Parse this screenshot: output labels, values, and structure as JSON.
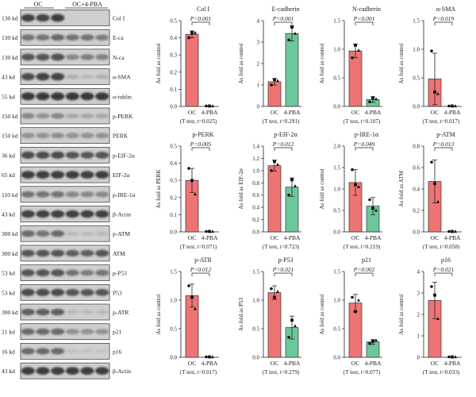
{
  "blot": {
    "group_labels": [
      "OC",
      "OC+4-PBA"
    ],
    "rows": [
      {
        "kd": "130 kd",
        "name": "Col I",
        "oc": [
          0.8,
          0.78,
          0.82
        ],
        "pba": [
          0.1,
          0.08,
          0.08
        ]
      },
      {
        "kd": "130 kd",
        "name": "E-ca",
        "oc": [
          0.55,
          0.55,
          0.6
        ],
        "pba": [
          0.55,
          0.55,
          0.5
        ]
      },
      {
        "kd": "130 kd",
        "name": "N-ca",
        "oc": [
          0.7,
          0.7,
          0.72
        ],
        "pba": [
          0.45,
          0.5,
          0.48
        ]
      },
      {
        "kd": "43 kd",
        "name": "α-SMA",
        "oc": [
          0.75,
          0.8,
          0.78
        ],
        "pba": [
          0.25,
          0.2,
          0.25
        ]
      },
      {
        "kd": "55 kd",
        "name": "α-tublin",
        "oc": [
          0.85,
          0.85,
          0.85
        ],
        "pba": [
          0.85,
          0.85,
          0.85
        ]
      },
      {
        "kd": "150 kd",
        "name": "p-PERK",
        "oc": [
          0.45,
          0.4,
          0.45
        ],
        "pba": [
          0.3,
          0.3,
          0.3
        ]
      },
      {
        "kd": "150 kd",
        "name": "PERK",
        "oc": [
          0.4,
          0.4,
          0.42
        ],
        "pba": [
          0.4,
          0.4,
          0.4
        ]
      },
      {
        "kd": "36 kd",
        "name": "p-EIF-2α",
        "oc": [
          0.75,
          0.75,
          0.75
        ],
        "pba": [
          0.7,
          0.68,
          0.7
        ]
      },
      {
        "kd": "65 kd",
        "name": "EIF-2α",
        "oc": [
          0.82,
          0.82,
          0.82
        ],
        "pba": [
          0.82,
          0.8,
          0.82
        ]
      },
      {
        "kd": "110 kd",
        "name": "p-IRE-1α",
        "oc": [
          0.55,
          0.55,
          0.55
        ],
        "pba": [
          0.45,
          0.45,
          0.45
        ]
      },
      {
        "kd": "43 kd",
        "name": "β-Actin",
        "oc": [
          0.8,
          0.8,
          0.8
        ],
        "pba": [
          0.8,
          0.8,
          0.8
        ]
      },
      {
        "kd": "300 kd",
        "name": "p-ATM",
        "oc": [
          0.6,
          0.55,
          0.6
        ],
        "pba": [
          0.2,
          0.2,
          0.2
        ]
      },
      {
        "kd": "300 kd",
        "name": "ATM",
        "oc": [
          0.7,
          0.7,
          0.7
        ],
        "pba": [
          0.65,
          0.65,
          0.7
        ]
      },
      {
        "kd": "53 kd",
        "name": "p-P53",
        "oc": [
          0.7,
          0.7,
          0.7
        ],
        "pba": [
          0.55,
          0.5,
          0.55
        ]
      },
      {
        "kd": "53 kd",
        "name": "P53",
        "oc": [
          0.75,
          0.75,
          0.75
        ],
        "pba": [
          0.7,
          0.7,
          0.7
        ]
      },
      {
        "kd": "300 kd",
        "name": "p-ATR",
        "oc": [
          0.65,
          0.65,
          0.65
        ],
        "pba": [
          0.2,
          0.2,
          0.2
        ]
      },
      {
        "kd": "21 kd",
        "name": "p21",
        "oc": [
          0.6,
          0.6,
          0.6
        ],
        "pba": [
          0.4,
          0.4,
          0.4
        ]
      },
      {
        "kd": "16 kd",
        "name": "p16",
        "oc": [
          0.6,
          0.6,
          0.6
        ],
        "pba": [
          0.15,
          0.15,
          0.15
        ]
      },
      {
        "kd": "43 kd",
        "name": "β-Actin",
        "oc": [
          0.82,
          0.82,
          0.82
        ],
        "pba": [
          0.82,
          0.82,
          0.82
        ]
      }
    ]
  },
  "colors": {
    "oc": "#ee7474",
    "pba": "#6cc79a"
  },
  "chart_data": [
    {
      "type": "bar",
      "title": "Col I",
      "ylabel": "As fold as control",
      "ylim": [
        0,
        0.5
      ],
      "yticks": [
        0.0,
        0.1,
        0.2,
        0.3,
        0.4,
        0.5
      ],
      "categories": [
        "OC",
        "4-PBA"
      ],
      "values": [
        0.42,
        0
      ],
      "errors": [
        0.02,
        0
      ],
      "points": [
        [
          0.4,
          0.43,
          0.43
        ],
        [
          0,
          0,
          0
        ]
      ],
      "pvalue": "P=0.001",
      "ttest": "(T test, t=0.025)"
    },
    {
      "type": "bar",
      "title": "E-cadherin",
      "ylabel": "As fold as control",
      "ylim": [
        0,
        4
      ],
      "yticks": [
        0,
        1,
        2,
        3,
        4
      ],
      "categories": [
        "OC",
        "4-PBA"
      ],
      "values": [
        1.15,
        3.4
      ],
      "errors": [
        0.15,
        0.35
      ],
      "points": [
        [
          1.0,
          1.25,
          1.2
        ],
        [
          3.1,
          3.7,
          3.4
        ]
      ],
      "pvalue": "P=0.001",
      "ttest": "(T test, t=0.291)"
    },
    {
      "type": "bar",
      "title": "N-cadherin",
      "ylabel": "As fold as control",
      "ylim": [
        0,
        1.5
      ],
      "yticks": [
        0.0,
        0.5,
        1.0,
        1.5
      ],
      "categories": [
        "OC",
        "4-PBA"
      ],
      "values": [
        0.97,
        0.12
      ],
      "errors": [
        0.12,
        0.05
      ],
      "points": [
        [
          0.85,
          1.07,
          0.98
        ],
        [
          0.08,
          0.15,
          0.13
        ]
      ],
      "pvalue": "P<0.001",
      "ttest": "(T test, t=0.107)"
    },
    {
      "type": "bar",
      "title": "α-SMA",
      "ylabel": "As fold as control",
      "ylim": [
        0,
        1.5
      ],
      "yticks": [
        0.0,
        0.5,
        1.0,
        1.5
      ],
      "categories": [
        "OC",
        "4-PBA"
      ],
      "values": [
        0.48,
        0
      ],
      "errors": [
        0.45,
        0
      ],
      "points": [
        [
          0.97,
          0.25,
          0.22
        ],
        [
          0,
          0,
          0
        ]
      ],
      "pvalue": "P=0.019",
      "ttest": "(T test, t=0.017)"
    },
    {
      "type": "bar",
      "title": "p-PERK",
      "ylabel": "As fold as PERK",
      "ylim": [
        0,
        0.5
      ],
      "yticks": [
        0.0,
        0.1,
        0.2,
        0.3,
        0.4,
        0.5
      ],
      "categories": [
        "OC",
        "4-PBA"
      ],
      "values": [
        0.3,
        0
      ],
      "errors": [
        0.07,
        0
      ],
      "points": [
        [
          0.37,
          0.3,
          0.22
        ],
        [
          0,
          0,
          0
        ]
      ],
      "pvalue": "P=0.005",
      "ttest": "(T test, t=0.071)"
    },
    {
      "type": "bar",
      "title": "p-EIF-2α",
      "ylabel": "As fold as EIF-2α",
      "ylim": [
        0,
        1.4
      ],
      "yticks": [
        0.0,
        0.2,
        0.4,
        0.6,
        0.8,
        1.0,
        1.2,
        1.4
      ],
      "categories": [
        "OC",
        "4-PBA"
      ],
      "values": [
        1.08,
        0.73
      ],
      "errors": [
        0.09,
        0.15
      ],
      "points": [
        [
          1.0,
          1.15,
          1.1
        ],
        [
          0.6,
          0.85,
          0.75
        ]
      ],
      "pvalue": "P=0.012",
      "ttest": "(T test, t=0.723)"
    },
    {
      "type": "bar",
      "title": "p-IRE-1α",
      "ylabel": "As fold as control",
      "ylim": [
        0,
        2.0
      ],
      "yticks": [
        0.0,
        0.5,
        1.0,
        1.5,
        2.0
      ],
      "categories": [
        "OC",
        "4-PBA"
      ],
      "values": [
        1.15,
        0.6
      ],
      "errors": [
        0.3,
        0.2
      ],
      "points": [
        [
          1.45,
          1.1,
          1.05
        ],
        [
          0.75,
          0.55,
          0.5
        ]
      ],
      "pvalue": "P=0.049",
      "ttest": "(T test, t=0.219)"
    },
    {
      "type": "bar",
      "title": "p-ATM",
      "ylabel": "As fold as ATM",
      "ylim": [
        0,
        0.8
      ],
      "yticks": [
        0.0,
        0.2,
        0.4,
        0.6,
        0.8
      ],
      "categories": [
        "OC",
        "4-PBA"
      ],
      "values": [
        0.47,
        0
      ],
      "errors": [
        0.2,
        0
      ],
      "points": [
        [
          0.65,
          0.45,
          0.28
        ],
        [
          0,
          0,
          0
        ]
      ],
      "pvalue": "P=0.013",
      "ttest": "(T test, t=0.058)"
    },
    {
      "type": "bar",
      "title": "p-ATR",
      "ylabel": "As fold as control",
      "ylim": [
        0,
        1.5
      ],
      "yticks": [
        0.0,
        0.5,
        1.0,
        1.5
      ],
      "categories": [
        "OC",
        "4-PBA"
      ],
      "values": [
        1.08,
        0
      ],
      "errors": [
        0.2,
        0
      ],
      "points": [
        [
          1.25,
          1.05,
          0.85
        ],
        [
          0,
          0,
          0
        ]
      ],
      "pvalue": "P=0.012",
      "ttest": "(T test, t=0.017)"
    },
    {
      "type": "bar",
      "title": "p-P53",
      "ylabel": "As fold as P53",
      "ylim": [
        0,
        1.5
      ],
      "yticks": [
        0.0,
        0.5,
        1.0,
        1.5
      ],
      "categories": [
        "OC",
        "4-PBA"
      ],
      "values": [
        1.13,
        0.52
      ],
      "errors": [
        0.12,
        0.2
      ],
      "points": [
        [
          1.2,
          1.05,
          1.15
        ],
        [
          0.35,
          0.65,
          0.55
        ]
      ],
      "pvalue": "P=0.021",
      "ttest": "(T test, t=0.279)"
    },
    {
      "type": "bar",
      "title": "p21",
      "ylabel": "As fold as control",
      "ylim": [
        0,
        1.5
      ],
      "yticks": [
        0.0,
        0.5,
        1.0,
        1.5
      ],
      "categories": [
        "OC",
        "4-PBA"
      ],
      "values": [
        0.95,
        0.27
      ],
      "errors": [
        0.15,
        0.04
      ],
      "points": [
        [
          1.05,
          0.8,
          1.0
        ],
        [
          0.24,
          0.28,
          0.3
        ]
      ],
      "pvalue": "P=0.002",
      "ttest": "(T test, t=0.077)"
    },
    {
      "type": "bar",
      "title": "p16",
      "ylabel": "As fold as control",
      "ylim": [
        0,
        4
      ],
      "yticks": [
        0,
        1,
        2,
        3,
        4
      ],
      "categories": [
        "OC",
        "4-PBA"
      ],
      "values": [
        2.65,
        0
      ],
      "errors": [
        0.85,
        0
      ],
      "points": [
        [
          3.3,
          2.9,
          1.8
        ],
        [
          0,
          0,
          0
        ]
      ],
      "pvalue": "P=0.021",
      "ttest": "(T test, t=0.033)"
    }
  ]
}
